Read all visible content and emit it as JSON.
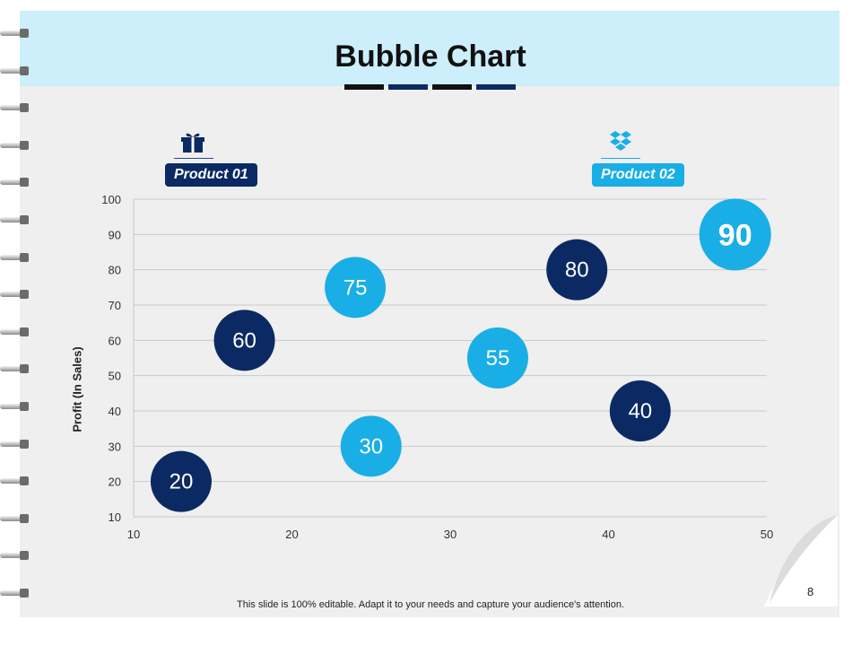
{
  "title": "Bubble Chart",
  "products": [
    {
      "name": "Product 01",
      "color": "#0b2a63",
      "icon": "gift-box-icon"
    },
    {
      "name": "Product 02",
      "color": "#1aaee6",
      "icon": "dropbox-icon"
    }
  ],
  "chart_data": {
    "type": "scatter",
    "subtype": "bubble",
    "title": "",
    "xlabel": "",
    "ylabel": "Profit  (In Sales)",
    "xlim": [
      10,
      50
    ],
    "ylim": [
      10,
      100
    ],
    "x_ticks": [
      "10",
      "20",
      "30",
      "40",
      "50"
    ],
    "y_ticks": [
      "10",
      "20",
      "30",
      "40",
      "50",
      "60",
      "70",
      "80",
      "90",
      "100"
    ],
    "grid": true,
    "series": [
      {
        "name": "Product 01",
        "color": "#0b2a63",
        "points": [
          {
            "x": 13,
            "y": 20,
            "label": "20"
          },
          {
            "x": 17,
            "y": 60,
            "label": "60"
          },
          {
            "x": 38,
            "y": 80,
            "label": "80"
          },
          {
            "x": 42,
            "y": 40,
            "label": "40"
          }
        ]
      },
      {
        "name": "Product 02",
        "color": "#1aaee6",
        "points": [
          {
            "x": 24,
            "y": 75,
            "label": "75"
          },
          {
            "x": 25,
            "y": 30,
            "label": "30"
          },
          {
            "x": 33,
            "y": 55,
            "label": "55"
          },
          {
            "x": 48,
            "y": 90,
            "label": "90"
          }
        ]
      }
    ]
  },
  "page_number": "8",
  "footer": "This slide is 100% editable. Adapt it to your needs and capture your audience's attention."
}
